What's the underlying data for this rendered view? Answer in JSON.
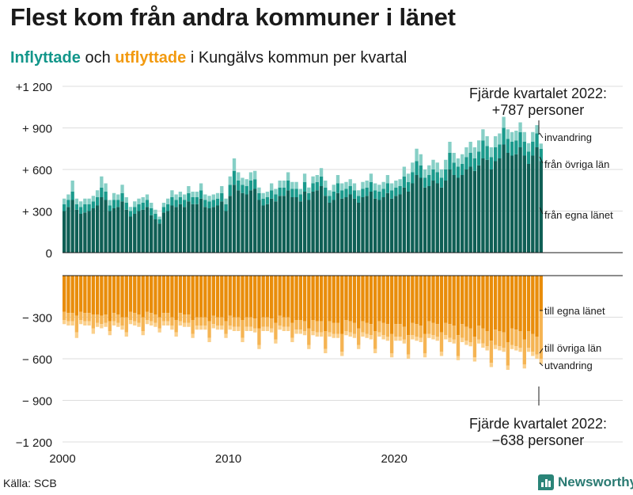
{
  "header": {
    "title": "Flest kom från andra kommuner i länet",
    "subtitle_in": "Inflyttade",
    "subtitle_mid": " och ",
    "subtitle_out": "utflyttade",
    "subtitle_rest": " i Kungälvs kommun per kvartal"
  },
  "footer": {
    "source": "Källa: SCB",
    "brand": "Newsworthy"
  },
  "colors": {
    "in_dark": "#0f5f55",
    "in_mid": "#1a9a8c",
    "in_light": "#86cfc6",
    "out_dark": "#e98d0b",
    "out_mid": "#f5b453",
    "out_light": "#fbd08c",
    "grid": "#dddddd",
    "axis": "#1a1a1a"
  },
  "chart_data": {
    "type": "bar",
    "stacked": true,
    "title": "Flest kom från andra kommuner i länet",
    "subtitle": "Inflyttade och utflyttade i Kungälvs kommun per kvartal",
    "ylim": [
      -1200,
      1200
    ],
    "yticks": [
      {
        "value": 1200,
        "label": "+1 200"
      },
      {
        "value": 900,
        "label": "+ 900"
      },
      {
        "value": 600,
        "label": "+ 600"
      },
      {
        "value": 300,
        "label": "+ 300"
      },
      {
        "value": 0,
        "label": "0"
      },
      {
        "value": -300,
        "label": "− 300"
      },
      {
        "value": -600,
        "label": "− 600"
      },
      {
        "value": -900,
        "label": "− 900"
      },
      {
        "value": -1200,
        "label": "−1 200"
      }
    ],
    "xticks": [
      {
        "year": 2000,
        "label": "2000"
      },
      {
        "year": 2010,
        "label": "2010"
      },
      {
        "year": 2020,
        "label": "2020"
      }
    ],
    "start_year": 2000,
    "quarters_per_year": 4,
    "series": [
      {
        "name": "från egna länet",
        "group": "in",
        "values": [
          300,
          330,
          380,
          310,
          280,
          290,
          300,
          320,
          340,
          400,
          380,
          300,
          320,
          330,
          370,
          310,
          260,
          280,
          300,
          310,
          330,
          270,
          240,
          210,
          290,
          300,
          340,
          330,
          350,
          330,
          370,
          350,
          350,
          390,
          330,
          320,
          330,
          340,
          370,
          300,
          410,
          490,
          450,
          430,
          420,
          450,
          460,
          380,
          340,
          350,
          390,
          370,
          410,
          410,
          450,
          400,
          400,
          370,
          440,
          380,
          440,
          450,
          480,
          410,
          360,
          380,
          430,
          390,
          400,
          420,
          390,
          360,
          400,
          410,
          440,
          390,
          380,
          400,
          430,
          390,
          410,
          420,
          470,
          440,
          500,
          560,
          540,
          470,
          480,
          520,
          500,
          470,
          520,
          600,
          560,
          540,
          560,
          600,
          620,
          590,
          630,
          680,
          670,
          600,
          660,
          680,
          780,
          720,
          700,
          710,
          760,
          700,
          640,
          700,
          760,
          660
        ]
      },
      {
        "name": "från övriga län",
        "group": "in",
        "values": [
          50,
          50,
          60,
          40,
          50,
          60,
          50,
          50,
          60,
          70,
          60,
          40,
          60,
          50,
          60,
          50,
          40,
          50,
          50,
          50,
          50,
          50,
          40,
          30,
          40,
          50,
          60,
          50,
          50,
          50,
          60,
          50,
          50,
          60,
          50,
          50,
          50,
          50,
          60,
          50,
          80,
          100,
          70,
          60,
          60,
          70,
          70,
          50,
          50,
          50,
          60,
          50,
          60,
          60,
          70,
          60,
          60,
          50,
          70,
          50,
          60,
          60,
          70,
          60,
          50,
          60,
          70,
          60,
          60,
          60,
          60,
          50,
          60,
          60,
          70,
          60,
          60,
          60,
          70,
          60,
          60,
          60,
          80,
          70,
          80,
          100,
          90,
          70,
          80,
          80,
          80,
          70,
          80,
          120,
          90,
          80,
          80,
          90,
          100,
          90,
          100,
          130,
          100,
          90,
          100,
          100,
          120,
          100,
          100,
          100,
          110,
          100,
          90,
          100,
          100,
          90
        ]
      },
      {
        "name": "invandring",
        "group": "in",
        "values": [
          40,
          40,
          80,
          40,
          40,
          40,
          40,
          40,
          50,
          80,
          60,
          40,
          50,
          40,
          60,
          40,
          30,
          40,
          40,
          40,
          40,
          40,
          30,
          20,
          30,
          40,
          50,
          40,
          40,
          40,
          50,
          40,
          40,
          50,
          40,
          40,
          40,
          40,
          50,
          40,
          60,
          90,
          60,
          50,
          50,
          60,
          60,
          40,
          40,
          40,
          50,
          40,
          50,
          50,
          60,
          50,
          50,
          40,
          60,
          40,
          50,
          50,
          60,
          50,
          40,
          50,
          60,
          50,
          50,
          50,
          50,
          40,
          50,
          50,
          60,
          50,
          50,
          50,
          60,
          50,
          50,
          50,
          70,
          60,
          70,
          90,
          80,
          60,
          70,
          70,
          70,
          60,
          70,
          80,
          70,
          60,
          70,
          70,
          80,
          80,
          80,
          80,
          70,
          70,
          80,
          80,
          80,
          70,
          70,
          70,
          70,
          70,
          60,
          70,
          60,
          37
        ]
      },
      {
        "name": "till egna länet",
        "group": "out",
        "values": [
          260,
          270,
          270,
          290,
          260,
          270,
          270,
          280,
          280,
          290,
          280,
          330,
          270,
          280,
          300,
          300,
          260,
          270,
          280,
          300,
          260,
          270,
          280,
          300,
          270,
          270,
          300,
          320,
          270,
          280,
          280,
          320,
          300,
          300,
          300,
          330,
          290,
          300,
          300,
          330,
          290,
          300,
          300,
          320,
          300,
          300,
          310,
          380,
          300,
          300,
          310,
          340,
          290,
          300,
          300,
          340,
          320,
          320,
          330,
          380,
          320,
          330,
          330,
          400,
          330,
          340,
          340,
          420,
          320,
          330,
          340,
          380,
          330,
          340,
          350,
          400,
          330,
          340,
          350,
          420,
          350,
          350,
          370,
          430,
          340,
          350,
          360,
          420,
          330,
          340,
          350,
          410,
          340,
          350,
          360,
          430,
          350,
          370,
          380,
          440,
          360,
          380,
          400,
          470,
          390,
          400,
          410,
          480,
          380,
          390,
          400,
          460,
          400,
          420,
          440,
          250
        ]
      },
      {
        "name": "till övriga län",
        "group": "out",
        "values": [
          60,
          60,
          60,
          120,
          60,
          60,
          60,
          100,
          60,
          60,
          60,
          70,
          60,
          60,
          60,
          110,
          60,
          60,
          60,
          100,
          60,
          60,
          60,
          80,
          60,
          60,
          60,
          90,
          60,
          60,
          60,
          100,
          60,
          60,
          60,
          120,
          60,
          60,
          60,
          90,
          70,
          70,
          70,
          130,
          70,
          70,
          70,
          120,
          70,
          70,
          70,
          120,
          70,
          70,
          70,
          110,
          70,
          70,
          70,
          120,
          80,
          80,
          80,
          130,
          80,
          80,
          80,
          130,
          80,
          80,
          80,
          120,
          80,
          80,
          80,
          130,
          80,
          90,
          90,
          140,
          90,
          90,
          90,
          140,
          90,
          90,
          90,
          140,
          90,
          90,
          90,
          140,
          90,
          100,
          100,
          150,
          100,
          100,
          100,
          150,
          100,
          110,
          110,
          160,
          110,
          110,
          110,
          170,
          120,
          120,
          120,
          180,
          120,
          130,
          130,
          350
        ]
      },
      {
        "name": "utvandring",
        "group": "out",
        "values": [
          30,
          30,
          30,
          40,
          30,
          30,
          30,
          40,
          30,
          30,
          30,
          30,
          30,
          30,
          30,
          30,
          30,
          30,
          30,
          30,
          30,
          30,
          30,
          30,
          30,
          30,
          30,
          30,
          30,
          30,
          30,
          30,
          30,
          30,
          30,
          30,
          30,
          30,
          30,
          30,
          30,
          30,
          30,
          30,
          30,
          30,
          30,
          30,
          30,
          30,
          30,
          30,
          30,
          30,
          30,
          30,
          30,
          30,
          30,
          30,
          30,
          30,
          30,
          30,
          30,
          30,
          30,
          30,
          30,
          30,
          30,
          30,
          30,
          30,
          30,
          30,
          30,
          30,
          30,
          30,
          30,
          30,
          30,
          30,
          30,
          30,
          30,
          30,
          30,
          30,
          30,
          30,
          30,
          30,
          30,
          30,
          30,
          30,
          30,
          30,
          30,
          30,
          30,
          30,
          30,
          30,
          30,
          30,
          30,
          30,
          30,
          30,
          30,
          30,
          30,
          38
        ]
      }
    ],
    "series_labels": {
      "invandring": "invandring",
      "fran_ovriga_lan": "från övriga län",
      "fran_egna_lanet": "från egna länet",
      "till_egna_lanet": "till egna länet",
      "till_ovriga_lan": "till övriga län",
      "utvandring": "utvandring"
    },
    "annotations": {
      "in_title": "Fjärde kvartalet 2022:",
      "in_value": "+787 personer",
      "out_title": "Fjärde kvartalet 2022:",
      "out_value": "−638 personer"
    }
  }
}
